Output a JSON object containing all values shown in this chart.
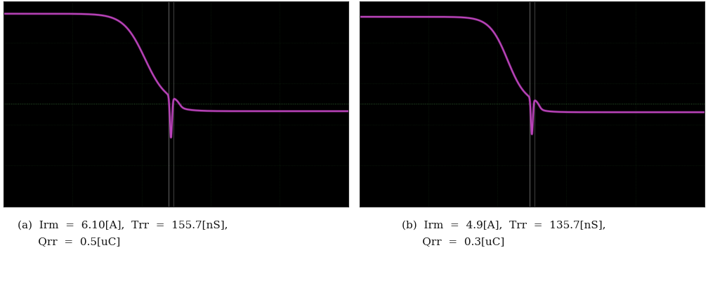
{
  "fig_width": 10.08,
  "fig_height": 4.04,
  "panel_bg": "#000000",
  "grid_color": "#1a3a1a",
  "waveform_color": "#bb44bb",
  "caption_a": "(a)  Irm  =  6.10[A],  Trr  =  155.7[nS],\n      Qrr  =  0.5[uC]",
  "caption_b": "(b)  Irm  =  4.9[A],  Trr  =  135.7[nS],\n      Qrr  =  0.3[uC]",
  "caption_color": "#111111",
  "caption_fontsize": 11
}
